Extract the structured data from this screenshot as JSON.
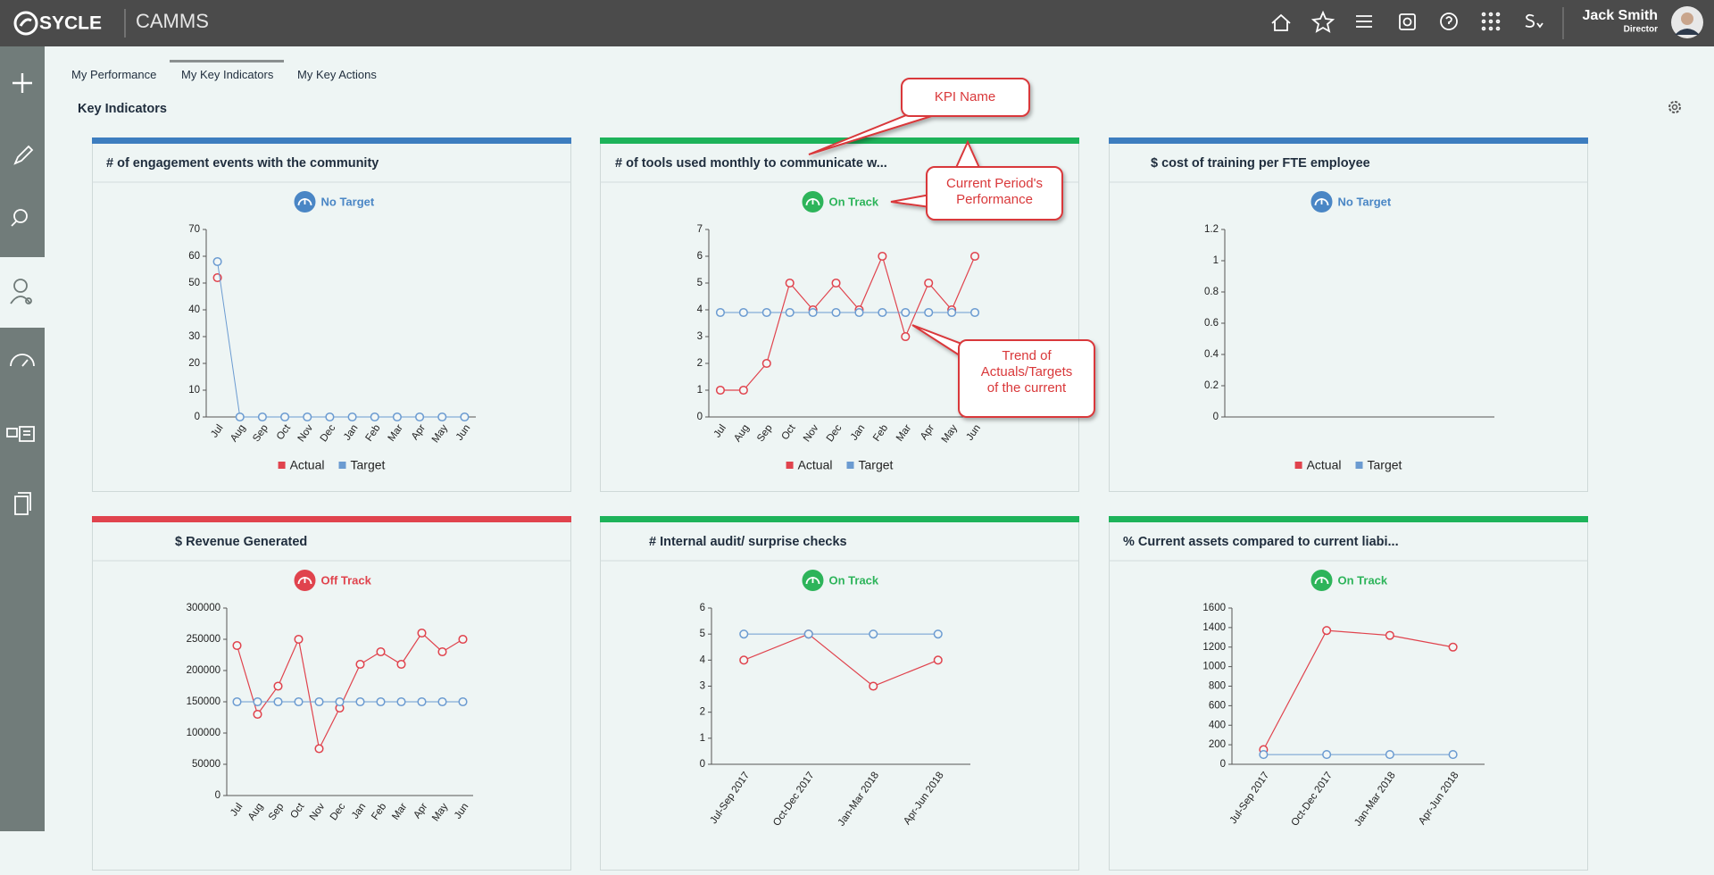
{
  "header": {
    "logo": "SYCLE",
    "app": "CAMMS",
    "user_name": "Jack Smith",
    "user_role": "Director"
  },
  "tabs": [
    "My Performance",
    "My Key Indicators",
    "My Key Actions"
  ],
  "section_title": "Key Indicators",
  "callouts": [
    {
      "lines": [
        "KPI Name"
      ]
    },
    {
      "lines": [
        "Current Period's",
        "Performance"
      ]
    },
    {
      "lines": [
        "Trend of",
        "Actuals/Targets",
        "of the current"
      ]
    }
  ],
  "chart_data": [
    {
      "type": "line",
      "title": "# of engagement events with the community",
      "status": "No Target",
      "status_color": "#4a86c5",
      "accent": "#3d7dbf",
      "categories": [
        "Jul",
        "Aug",
        "Sep",
        "Oct",
        "Nov",
        "Dec",
        "Jan",
        "Feb",
        "Mar",
        "Apr",
        "May",
        "Jun"
      ],
      "series": [
        {
          "name": "Actual",
          "color": "#e0434d",
          "values": [
            52,
            null,
            null,
            null,
            null,
            null,
            null,
            null,
            null,
            null,
            null,
            null
          ]
        },
        {
          "name": "Target",
          "color": "#6b9bd1",
          "values": [
            58,
            0,
            0,
            0,
            0,
            0,
            0,
            0,
            0,
            0,
            0,
            0
          ]
        }
      ],
      "ylim": [
        0,
        70
      ],
      "yticks": [
        0,
        10,
        20,
        30,
        40,
        50,
        60,
        70
      ]
    },
    {
      "type": "line",
      "title": "# of tools used monthly to communicate w...",
      "status": "On Track",
      "status_color": "#2db45a",
      "accent": "#1db35a",
      "categories": [
        "Jul",
        "Aug",
        "Sep",
        "Oct",
        "Nov",
        "Dec",
        "Jan",
        "Feb",
        "Mar",
        "Apr",
        "May",
        "Jun"
      ],
      "series": [
        {
          "name": "Actual",
          "color": "#e0434d",
          "values": [
            1,
            1,
            2,
            5,
            4,
            5,
            4,
            6,
            3,
            5,
            4,
            6
          ]
        },
        {
          "name": "Target",
          "color": "#6b9bd1",
          "values": [
            3.9,
            3.9,
            3.9,
            3.9,
            3.9,
            3.9,
            3.9,
            3.9,
            3.9,
            3.9,
            3.9,
            3.9
          ]
        }
      ],
      "ylim": [
        0,
        7
      ],
      "yticks": [
        0,
        1,
        2,
        3,
        4,
        5,
        6,
        7
      ]
    },
    {
      "type": "line",
      "title": "$ cost of training per FTE employee",
      "status": "No Target",
      "status_color": "#4a86c5",
      "accent": "#3d7dbf",
      "categories": [],
      "series": [
        {
          "name": "Actual",
          "color": "#e0434d",
          "values": []
        },
        {
          "name": "Target",
          "color": "#6b9bd1",
          "values": []
        }
      ],
      "ylim": [
        0,
        1.2
      ],
      "yticks": [
        0,
        0.2,
        0.4,
        0.6,
        0.8,
        1,
        1.2
      ]
    },
    {
      "type": "line",
      "title": "$ Revenue Generated",
      "status": "Off Track",
      "status_color": "#e0434d",
      "accent": "#e0434d",
      "categories": [
        "Jul",
        "Aug",
        "Sep",
        "Oct",
        "Nov",
        "Dec",
        "Jan",
        "Feb",
        "Mar",
        "Apr",
        "May",
        "Jun"
      ],
      "series": [
        {
          "color": "#e0434d",
          "values": [
            240000,
            130000,
            175000,
            250000,
            75000,
            140000,
            210000,
            230000,
            210000,
            260000,
            230000,
            250000
          ]
        },
        {
          "color": "#6b9bd1",
          "values": [
            150000,
            150000,
            150000,
            150000,
            150000,
            150000,
            150000,
            150000,
            150000,
            150000,
            150000,
            150000
          ]
        }
      ],
      "ylim": [
        0,
        300000
      ],
      "yticks": [
        0,
        50000,
        100000,
        150000,
        200000,
        250000,
        300000
      ]
    },
    {
      "type": "line",
      "title": "# Internal audit/ surprise checks",
      "status": "On Track",
      "status_color": "#2db45a",
      "accent": "#1db35a",
      "categories": [
        "Jul-Sep 2017",
        "Oct-Dec 2017",
        "Jan-Mar 2018",
        "Apr-Jun 2018"
      ],
      "series": [
        {
          "color": "#e0434d",
          "values": [
            4,
            5,
            3,
            4
          ]
        },
        {
          "color": "#6b9bd1",
          "values": [
            5,
            5,
            5,
            5
          ]
        }
      ],
      "ylim": [
        0,
        6
      ],
      "yticks": [
        0,
        1,
        2,
        3,
        4,
        5,
        6
      ]
    },
    {
      "type": "line",
      "title": "% Current assets compared to current liabi...",
      "status": "On Track",
      "status_color": "#2db45a",
      "accent": "#1db35a",
      "categories": [
        "Jul-Sep 2017",
        "Oct-Dec 2017",
        "Jan-Mar 2018",
        "Apr-Jun 2018"
      ],
      "series": [
        {
          "color": "#e0434d",
          "values": [
            150,
            1370,
            1320,
            1200
          ]
        },
        {
          "color": "#6b9bd1",
          "values": [
            100,
            100,
            100,
            100
          ]
        }
      ],
      "ylim": [
        0,
        1600
      ],
      "yticks": [
        0,
        200,
        400,
        600,
        800,
        1000,
        1200,
        1400,
        1600
      ]
    }
  ]
}
